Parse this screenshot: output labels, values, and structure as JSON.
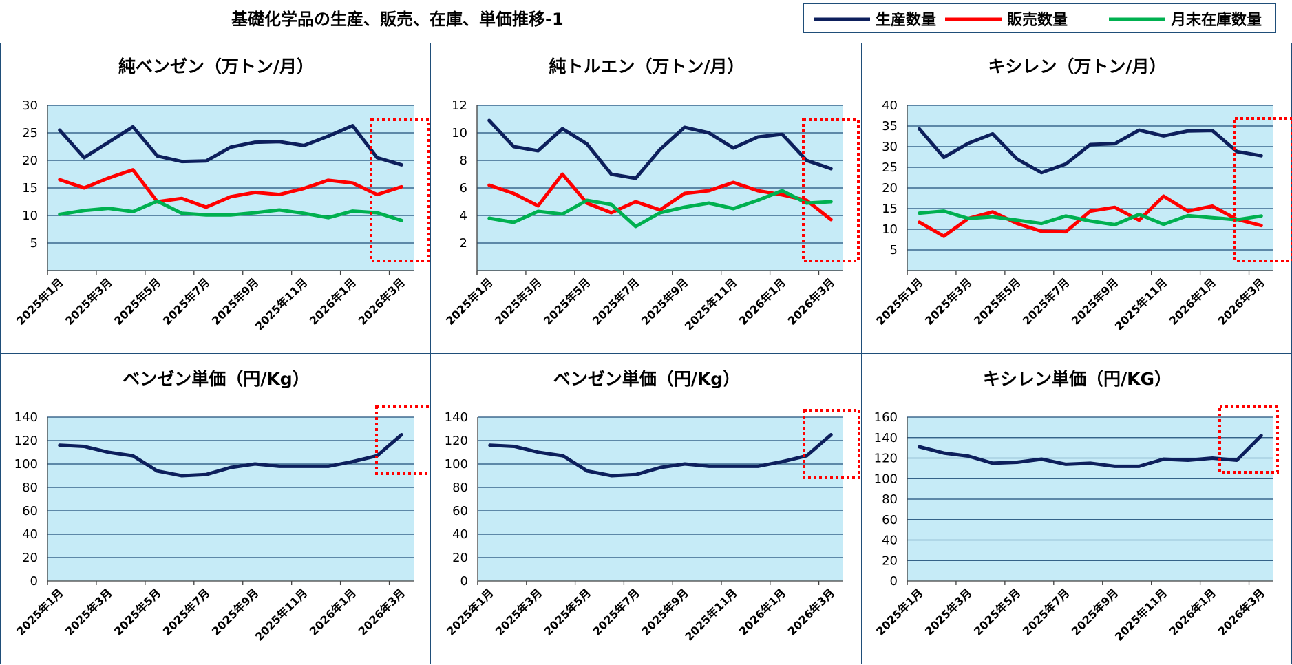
{
  "title": "基礎化学品の生産、販売、在庫、単価推移-1",
  "legend": [
    {
      "name": "生産数量",
      "color": "#0d1f5c"
    },
    {
      "name": "販売数量",
      "color": "#ff0000"
    },
    {
      "name": "月末在庫数量",
      "color": "#00b050"
    }
  ],
  "colors": {
    "plot_bg": "#c6ebf7",
    "grid": "#1f4e79",
    "highlight": "#ff0000"
  },
  "chart_data": [
    {
      "type": "line",
      "title": "純ベンゼン（万トン/月）",
      "x_labels": [
        "2025年1月",
        "2025年3月",
        "2025年5月",
        "2025年7月",
        "2025年9月",
        "2025年11月",
        "2026年1月",
        "2026年3月"
      ],
      "ylim": [
        0,
        30
      ],
      "yticks": [
        5,
        10,
        15,
        20,
        25,
        30
      ],
      "show_zero": false,
      "grid": true,
      "highlight": "last two months",
      "series": [
        {
          "name": "生産数量",
          "values": [
            25.5,
            20.5,
            23.3,
            26.1,
            20.8,
            19.8,
            19.9,
            22.4,
            23.3,
            23.4,
            22.7,
            24.4,
            26.3,
            20.5,
            19.2
          ]
        },
        {
          "name": "販売数量",
          "values": [
            16.5,
            15.0,
            16.8,
            18.3,
            12.5,
            13.1,
            11.5,
            13.4,
            14.2,
            13.8,
            14.9,
            16.4,
            15.9,
            13.8,
            15.2
          ]
        },
        {
          "name": "月末在庫数量",
          "values": [
            10.2,
            10.9,
            11.3,
            10.7,
            12.6,
            10.4,
            10.1,
            10.1,
            10.5,
            11.0,
            10.4,
            9.6,
            10.8,
            10.5,
            9.1
          ]
        }
      ]
    },
    {
      "type": "line",
      "title": "純トルエン（万トン/月）",
      "x_labels": [
        "2025年1月",
        "2025年3月",
        "2025年5月",
        "2025年7月",
        "2025年9月",
        "2025年11月",
        "2026年1月",
        "2026年3月"
      ],
      "ylim": [
        0,
        12
      ],
      "yticks": [
        2,
        4,
        6,
        8,
        10,
        12
      ],
      "show_zero": false,
      "grid": true,
      "highlight": "last two months",
      "series": [
        {
          "name": "生産数量",
          "values": [
            10.9,
            9.0,
            8.7,
            10.3,
            9.2,
            7.0,
            6.7,
            8.8,
            10.4,
            10.0,
            8.9,
            9.7,
            9.9,
            8.0,
            7.4
          ]
        },
        {
          "name": "販売数量",
          "values": [
            6.2,
            5.6,
            4.7,
            7.0,
            4.9,
            4.2,
            5.0,
            4.4,
            5.6,
            5.8,
            6.4,
            5.8,
            5.5,
            5.1,
            3.7
          ]
        },
        {
          "name": "月末在庫数量",
          "values": [
            3.8,
            3.5,
            4.3,
            4.1,
            5.1,
            4.8,
            3.2,
            4.2,
            4.6,
            4.9,
            4.5,
            5.1,
            5.8,
            4.9,
            5.0
          ]
        }
      ]
    },
    {
      "type": "line",
      "title": "キシレン（万トン/月）",
      "x_labels": [
        "2025年1月",
        "2025年3月",
        "2025年5月",
        "2025年7月",
        "2025年9月",
        "2025年11月",
        "2026年1月",
        "2026年3月"
      ],
      "ylim": [
        0,
        40
      ],
      "yticks": [
        5,
        10,
        15,
        20,
        25,
        30,
        35,
        40
      ],
      "show_zero": false,
      "grid": true,
      "highlight": "last two months",
      "series": [
        {
          "name": "生産数量",
          "values": [
            34.3,
            27.4,
            30.8,
            33.1,
            27.0,
            23.7,
            25.8,
            30.5,
            30.7,
            34.0,
            32.6,
            33.8,
            33.9,
            28.8,
            27.8
          ]
        },
        {
          "name": "販売数量",
          "values": [
            11.7,
            8.3,
            12.6,
            14.2,
            11.4,
            9.5,
            9.4,
            14.4,
            15.3,
            12.2,
            18.0,
            14.4,
            15.6,
            12.4,
            10.9
          ]
        },
        {
          "name": "月末在庫数量",
          "values": [
            13.9,
            14.4,
            12.6,
            13.0,
            12.2,
            11.4,
            13.2,
            12.0,
            11.1,
            13.6,
            11.2,
            13.3,
            12.8,
            12.3,
            13.2
          ]
        }
      ]
    },
    {
      "type": "line",
      "title": "ベンゼン単価（円/Kg）",
      "x_labels": [
        "2025年1月",
        "2025年3月",
        "2025年5月",
        "2025年7月",
        "2025年9月",
        "2025年11月",
        "2026年1月",
        "2026年3月"
      ],
      "ylim": [
        0,
        140
      ],
      "yticks": [
        0,
        20,
        40,
        60,
        80,
        100,
        120,
        140
      ],
      "show_zero": true,
      "grid": true,
      "highlight": "last two months",
      "series": [
        {
          "name": "生産数量",
          "values": [
            116,
            115,
            110,
            107,
            94,
            90,
            91,
            97,
            100,
            98,
            98,
            98,
            102,
            107,
            125
          ]
        }
      ]
    },
    {
      "type": "line",
      "title": "ベンゼン単価（円/Kg）",
      "x_labels": [
        "2025年1月",
        "2025年3月",
        "2025年5月",
        "2025年7月",
        "2025年9月",
        "2025年11月",
        "2026年1月",
        "2026年3月"
      ],
      "ylim": [
        0,
        140
      ],
      "yticks": [
        0,
        20,
        40,
        60,
        80,
        100,
        120,
        140
      ],
      "show_zero": true,
      "grid": true,
      "highlight": "last two months",
      "series": [
        {
          "name": "生産数量",
          "values": [
            116,
            115,
            110,
            107,
            94,
            90,
            91,
            97,
            100,
            98,
            98,
            98,
            102,
            107,
            125
          ]
        }
      ]
    },
    {
      "type": "line",
      "title": "キシレン単価（円/KG）",
      "x_labels": [
        "2025年1月",
        "2025年3月",
        "2025年5月",
        "2025年7月",
        "2025年9月",
        "2025年11月",
        "2026年1月",
        "2026年3月"
      ],
      "ylim": [
        0,
        160
      ],
      "yticks": [
        0,
        20,
        40,
        60,
        80,
        100,
        120,
        140,
        160
      ],
      "show_zero": true,
      "grid": true,
      "highlight": "last two months",
      "series": [
        {
          "name": "生産数量",
          "values": [
            131,
            125,
            122,
            115,
            116,
            119,
            114,
            115,
            112,
            112,
            119,
            118,
            120,
            118,
            142
          ]
        }
      ]
    }
  ]
}
